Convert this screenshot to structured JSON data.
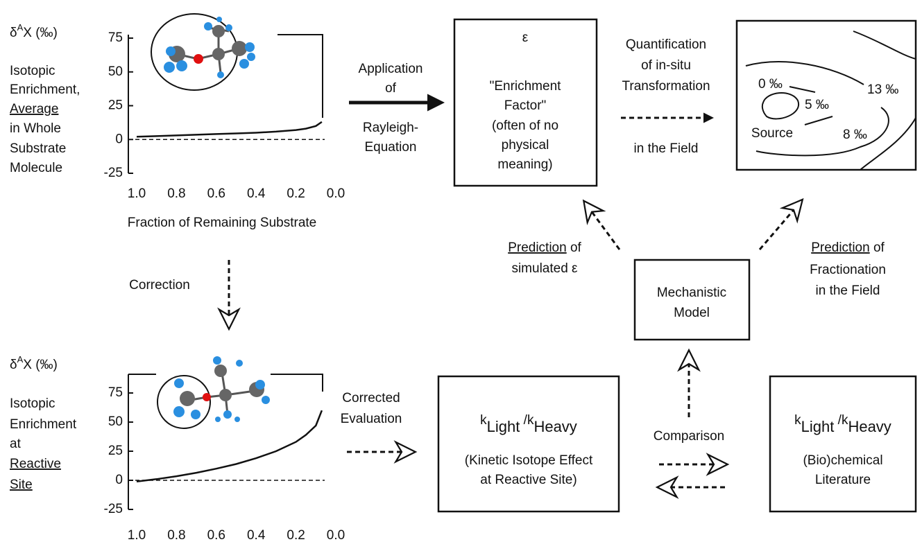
{
  "plots": [
    {
      "y_axis_symbol": [
        "δ",
        "A",
        "X (‰)"
      ],
      "description": [
        "Isotopic",
        "Enrichment,",
        "Average",
        "in Whole",
        "Substrate",
        "Molecule"
      ],
      "x_label": "Fraction of Remaining Substrate",
      "xlim": [
        1.0,
        0.0
      ],
      "ylim": [
        -25,
        75
      ],
      "xticks": [
        {
          "value": 1,
          "label": "1.0"
        },
        0.8,
        0.6,
        0.4,
        0.2,
        {
          "value": 0,
          "label": "0.0"
        }
      ],
      "yticks": [
        75,
        50,
        25,
        0,
        -25
      ],
      "curve": {
        "x": [
          1.0,
          0.9,
          0.8,
          0.7,
          0.6,
          0.5,
          0.4,
          0.3,
          0.2,
          0.15,
          0.1,
          0.07
        ],
        "y": [
          2,
          2.5,
          3,
          3.5,
          4,
          4.5,
          5,
          5.8,
          7,
          8,
          10,
          13
        ]
      }
    },
    {
      "y_axis_symbol": [
        "δ",
        "A",
        "X (‰)"
      ],
      "description": [
        "Isotopic",
        "Enrichment",
        "at",
        "Reactive",
        "Site"
      ],
      "xlim": [
        1.0,
        0.0
      ],
      "ylim": [
        -25,
        75
      ],
      "xticks": [
        {
          "value": 1,
          "label": "1.0"
        },
        0.8,
        0.6,
        0.4,
        0.2,
        {
          "value": 0,
          "label": "0.0"
        }
      ],
      "yticks": [
        75,
        50,
        25,
        0,
        -25
      ],
      "curve": {
        "x": [
          1.0,
          0.9,
          0.8,
          0.7,
          0.6,
          0.5,
          0.4,
          0.3,
          0.2,
          0.15,
          0.1,
          0.07
        ],
        "y": [
          -1,
          1,
          3.5,
          6.5,
          10,
          14,
          19,
          25,
          33,
          39,
          47,
          60
        ]
      }
    }
  ],
  "rayleigh_arrow": [
    "Application",
    "of",
    "Rayleigh-",
    "Equation"
  ],
  "epsilon_box": {
    "symbol": "ε",
    "lines": [
      "\"Enrichment",
      "Factor\"",
      "(often of no",
      "physical",
      "meaning)"
    ]
  },
  "field_arrow": {
    "above": [
      "Quantification",
      "of in-situ",
      "Transformation"
    ],
    "below": "in the Field"
  },
  "field_map": {
    "contours": [
      "0 ‰",
      "5 ‰",
      "13 ‰",
      "8 ‰"
    ],
    "source": "Source"
  },
  "prediction_left": {
    "underlined": "Prediction",
    "rest": " of",
    "line2": "simulated ε"
  },
  "prediction_right": {
    "underlined": "Prediction",
    "rest": " of",
    "line2": "Fractionation",
    "line3": "in the Field"
  },
  "model_box": [
    "Mechanistic",
    "Model"
  ],
  "correction": "Correction",
  "corrected_evaluation": [
    "Corrected",
    "Evaluation"
  ],
  "kie_box": {
    "formula": [
      "k",
      "Light",
      " /k",
      "Heavy"
    ],
    "lines": [
      "(Kinetic Isotope Effect",
      "at Reactive Site)"
    ]
  },
  "comparison": "Comparison",
  "literature_box": {
    "formula": [
      "k",
      "Light",
      " /k",
      "Heavy"
    ],
    "lines": [
      "(Bio)chemical",
      "Literature"
    ]
  }
}
